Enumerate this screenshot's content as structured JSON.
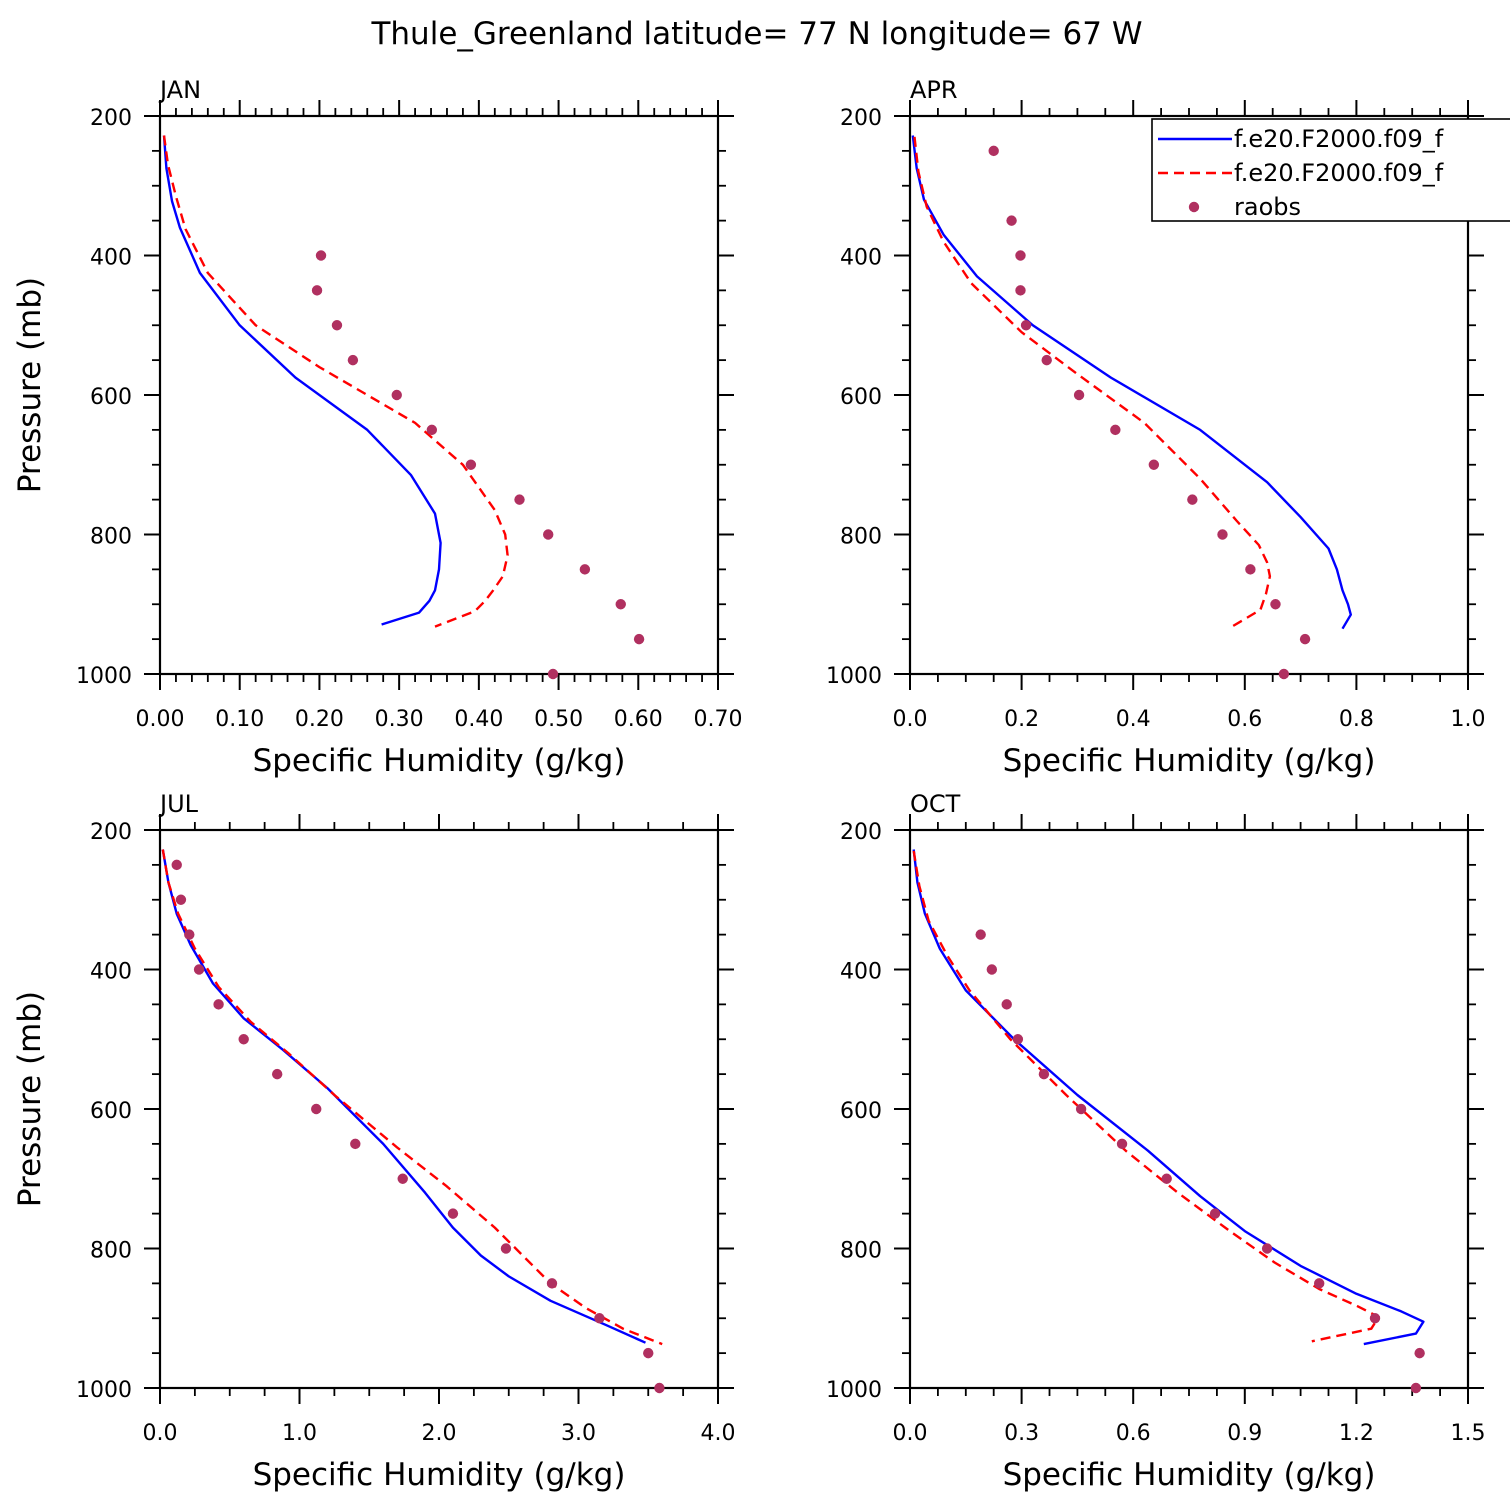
{
  "figure": {
    "title": "Thule_Greenland  latitude= 77 N longitude= 67 W"
  },
  "legend": {
    "entries": [
      {
        "label": "f.e20.F2000.f09_f",
        "color": "#0000ff",
        "style": "solid"
      },
      {
        "label": "f.e20.F2000.f09_f",
        "color": "#ff0000",
        "style": "dashed"
      },
      {
        "label": "raobs",
        "color": "#b03060",
        "style": "marker"
      }
    ]
  },
  "chart_data": [
    {
      "type": "line",
      "panel": "JAN",
      "title": "JAN",
      "xlabel": "Specific Humidity (g/kg)",
      "ylabel": "Pressure (mb)",
      "xlim": [
        0.0,
        0.7
      ],
      "ylim": [
        200,
        1000
      ],
      "y_inverted": true,
      "xticks": [
        "0.00",
        "0.10",
        "0.20",
        "0.30",
        "0.40",
        "0.50",
        "0.60",
        "0.70"
      ],
      "yticks": [
        "200",
        "400",
        "600",
        "800",
        "1000"
      ],
      "series": [
        {
          "style": "solid",
          "color": "#0000ff",
          "points": [
            [
              0.005,
              228
            ],
            [
              0.008,
              275
            ],
            [
              0.015,
              322
            ],
            [
              0.025,
              360
            ],
            [
              0.05,
              425
            ],
            [
              0.1,
              500
            ],
            [
              0.17,
              575
            ],
            [
              0.26,
              650
            ],
            [
              0.315,
              715
            ],
            [
              0.345,
              770
            ],
            [
              0.352,
              812
            ],
            [
              0.35,
              850
            ],
            [
              0.345,
              880
            ],
            [
              0.338,
              895
            ],
            [
              0.325,
              912
            ],
            [
              0.278,
              929
            ]
          ]
        },
        {
          "style": "dashed",
          "color": "#ff0000",
          "points": [
            [
              0.005,
              228
            ],
            [
              0.01,
              270
            ],
            [
              0.02,
              315
            ],
            [
              0.032,
              362
            ],
            [
              0.06,
              425
            ],
            [
              0.12,
              500
            ],
            [
              0.2,
              560
            ],
            [
              0.32,
              640
            ],
            [
              0.38,
              700
            ],
            [
              0.42,
              765
            ],
            [
              0.433,
              800
            ],
            [
              0.436,
              830
            ],
            [
              0.43,
              860
            ],
            [
              0.418,
              880
            ],
            [
              0.408,
              895
            ],
            [
              0.395,
              910
            ],
            [
              0.345,
              932
            ]
          ]
        },
        {
          "style": "marker",
          "color": "#b03060",
          "points": [
            [
              0.202,
              400
            ],
            [
              0.197,
              450
            ],
            [
              0.222,
              500
            ],
            [
              0.242,
              550
            ],
            [
              0.297,
              600
            ],
            [
              0.341,
              650
            ],
            [
              0.39,
              700
            ],
            [
              0.451,
              750
            ],
            [
              0.487,
              800
            ],
            [
              0.533,
              850
            ],
            [
              0.578,
              900
            ],
            [
              0.601,
              950
            ],
            [
              0.493,
              1000
            ]
          ]
        }
      ]
    },
    {
      "type": "line",
      "panel": "APR",
      "title": "APR",
      "xlabel": "Specific Humidity (g/kg)",
      "ylabel": "",
      "xlim": [
        0.0,
        1.0
      ],
      "ylim": [
        200,
        1000
      ],
      "y_inverted": true,
      "xticks": [
        "0.0",
        "0.2",
        "0.4",
        "0.6",
        "0.8",
        "1.0"
      ],
      "yticks": [
        "200",
        "400",
        "600",
        "800",
        "1000"
      ],
      "series": [
        {
          "style": "solid",
          "color": "#0000ff",
          "points": [
            [
              0.005,
              228
            ],
            [
              0.012,
              275
            ],
            [
              0.025,
              320
            ],
            [
              0.06,
              370
            ],
            [
              0.12,
              430
            ],
            [
              0.22,
              500
            ],
            [
              0.36,
              575
            ],
            [
              0.52,
              650
            ],
            [
              0.64,
              725
            ],
            [
              0.7,
              775
            ],
            [
              0.75,
              820
            ],
            [
              0.765,
              850
            ],
            [
              0.775,
              880
            ],
            [
              0.785,
              900
            ],
            [
              0.79,
              915
            ],
            [
              0.775,
              935
            ]
          ]
        },
        {
          "style": "dashed",
          "color": "#ff0000",
          "points": [
            [
              0.008,
              230
            ],
            [
              0.015,
              280
            ],
            [
              0.03,
              330
            ],
            [
              0.06,
              380
            ],
            [
              0.11,
              440
            ],
            [
              0.2,
              510
            ],
            [
              0.3,
              570
            ],
            [
              0.42,
              640
            ],
            [
              0.52,
              720
            ],
            [
              0.585,
              780
            ],
            [
              0.625,
              815
            ],
            [
              0.64,
              840
            ],
            [
              0.645,
              860
            ],
            [
              0.638,
              885
            ],
            [
              0.628,
              908
            ],
            [
              0.575,
              933
            ]
          ]
        },
        {
          "style": "marker",
          "color": "#b03060",
          "points": [
            [
              0.15,
              250
            ],
            [
              0.182,
              350
            ],
            [
              0.198,
              400
            ],
            [
              0.198,
              450
            ],
            [
              0.208,
              500
            ],
            [
              0.245,
              550
            ],
            [
              0.303,
              600
            ],
            [
              0.368,
              650
            ],
            [
              0.437,
              700
            ],
            [
              0.506,
              750
            ],
            [
              0.56,
              800
            ],
            [
              0.61,
              850
            ],
            [
              0.655,
              900
            ],
            [
              0.708,
              950
            ],
            [
              0.67,
              1000
            ]
          ]
        }
      ]
    },
    {
      "type": "line",
      "panel": "JUL",
      "title": "JUL",
      "xlabel": "Specific Humidity (g/kg)",
      "ylabel": "Pressure (mb)",
      "xlim": [
        0.0,
        4.0
      ],
      "ylim": [
        200,
        1000
      ],
      "y_inverted": true,
      "xticks": [
        "0.0",
        "1.0",
        "2.0",
        "3.0",
        "4.0"
      ],
      "yticks": [
        "200",
        "400",
        "600",
        "800",
        "1000"
      ],
      "series": [
        {
          "style": "solid",
          "color": "#0000ff",
          "points": [
            [
              0.02,
              228
            ],
            [
              0.06,
              275
            ],
            [
              0.12,
              320
            ],
            [
              0.22,
              365
            ],
            [
              0.38,
              420
            ],
            [
              0.6,
              470
            ],
            [
              0.88,
              515
            ],
            [
              1.2,
              570
            ],
            [
              1.6,
              650
            ],
            [
              1.9,
              720
            ],
            [
              2.1,
              770
            ],
            [
              2.3,
              810
            ],
            [
              2.5,
              840
            ],
            [
              2.8,
              875
            ],
            [
              3.2,
              910
            ],
            [
              3.48,
              935
            ]
          ]
        },
        {
          "style": "dashed",
          "color": "#ff0000",
          "points": [
            [
              0.02,
              228
            ],
            [
              0.06,
              275
            ],
            [
              0.13,
              320
            ],
            [
              0.25,
              370
            ],
            [
              0.42,
              425
            ],
            [
              0.65,
              475
            ],
            [
              0.92,
              520
            ],
            [
              1.25,
              580
            ],
            [
              1.7,
              655
            ],
            [
              2.05,
              710
            ],
            [
              2.4,
              770
            ],
            [
              2.6,
              810
            ],
            [
              2.8,
              850
            ],
            [
              3.05,
              885
            ],
            [
              3.32,
              915
            ],
            [
              3.6,
              937
            ]
          ]
        },
        {
          "style": "marker",
          "color": "#b03060",
          "points": [
            [
              0.12,
              250
            ],
            [
              0.15,
              300
            ],
            [
              0.21,
              350
            ],
            [
              0.28,
              400
            ],
            [
              0.42,
              450
            ],
            [
              0.6,
              500
            ],
            [
              0.84,
              550
            ],
            [
              1.12,
              600
            ],
            [
              1.4,
              650
            ],
            [
              1.74,
              700
            ],
            [
              2.1,
              750
            ],
            [
              2.48,
              800
            ],
            [
              2.81,
              850
            ],
            [
              3.15,
              900
            ],
            [
              3.5,
              950
            ],
            [
              3.58,
              1000
            ]
          ]
        }
      ]
    },
    {
      "type": "line",
      "panel": "OCT",
      "title": "OCT",
      "xlabel": "Specific Humidity (g/kg)",
      "ylabel": "",
      "xlim": [
        0.0,
        1.5
      ],
      "ylim": [
        200,
        1000
      ],
      "y_inverted": true,
      "xticks": [
        "0.0",
        "0.3",
        "0.6",
        "0.9",
        "1.2",
        "1.5"
      ],
      "yticks": [
        "200",
        "400",
        "600",
        "800",
        "1000"
      ],
      "series": [
        {
          "style": "solid",
          "color": "#0000ff",
          "points": [
            [
              0.01,
              228
            ],
            [
              0.02,
              275
            ],
            [
              0.04,
              320
            ],
            [
              0.08,
              370
            ],
            [
              0.15,
              430
            ],
            [
              0.28,
              500
            ],
            [
              0.45,
              580
            ],
            [
              0.64,
              660
            ],
            [
              0.78,
              725
            ],
            [
              0.9,
              775
            ],
            [
              1.05,
              825
            ],
            [
              1.2,
              865
            ],
            [
              1.32,
              890
            ],
            [
              1.38,
              905
            ],
            [
              1.36,
              922
            ],
            [
              1.22,
              937
            ]
          ]
        },
        {
          "style": "dashed",
          "color": "#ff0000",
          "points": [
            [
              0.01,
              230
            ],
            [
              0.025,
              280
            ],
            [
              0.05,
              330
            ],
            [
              0.1,
              380
            ],
            [
              0.16,
              430
            ],
            [
              0.27,
              500
            ],
            [
              0.42,
              580
            ],
            [
              0.58,
              660
            ],
            [
              0.72,
              720
            ],
            [
              0.86,
              775
            ],
            [
              0.98,
              820
            ],
            [
              1.1,
              858
            ],
            [
              1.2,
              882
            ],
            [
              1.26,
              898
            ],
            [
              1.24,
              915
            ],
            [
              1.08,
              933
            ]
          ]
        },
        {
          "style": "marker",
          "color": "#b03060",
          "points": [
            [
              0.19,
              350
            ],
            [
              0.22,
              400
            ],
            [
              0.26,
              450
            ],
            [
              0.29,
              500
            ],
            [
              0.36,
              550
            ],
            [
              0.46,
              600
            ],
            [
              0.57,
              650
            ],
            [
              0.69,
              700
            ],
            [
              0.82,
              750
            ],
            [
              0.96,
              800
            ],
            [
              1.1,
              850
            ],
            [
              1.25,
              900
            ],
            [
              1.37,
              950
            ],
            [
              1.36,
              1000
            ]
          ]
        }
      ]
    }
  ]
}
